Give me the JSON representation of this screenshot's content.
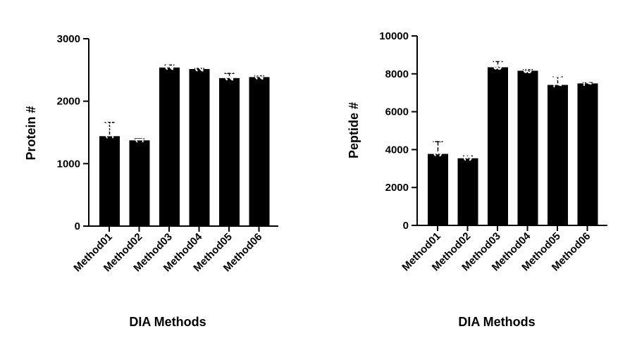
{
  "chart_data": [
    {
      "type": "bar",
      "categories": [
        "Method01",
        "Method02",
        "Method03",
        "Method04",
        "Method05",
        "Method06"
      ],
      "values": [
        1440,
        1373,
        2539,
        2515,
        2370,
        2386
      ],
      "error_upper": [
        220,
        25,
        40,
        10,
        75,
        20
      ],
      "data_labels": [
        "1440",
        "1373",
        "2539",
        "2515",
        "2370",
        "2386"
      ],
      "title": "",
      "xlabel": "DIA Methods",
      "ylabel": "Protein #",
      "ylim": [
        0,
        3000
      ],
      "yticks": [
        0,
        1000,
        2000,
        3000
      ],
      "ytick_labels": [
        "0",
        "1000",
        "2000",
        "3000"
      ],
      "bar_color": "#000000",
      "grid": false
    },
    {
      "type": "bar",
      "categories": [
        "Method01",
        "Method02",
        "Method03",
        "Method04",
        "Method05",
        "Method06"
      ],
      "values": [
        3773,
        3543,
        8346,
        8162,
        7414,
        7493
      ],
      "error_upper": [
        650,
        120,
        300,
        60,
        430,
        40
      ],
      "data_labels": [
        "3773",
        "3543",
        "8346",
        "8162",
        "7414",
        "7493"
      ],
      "title": "",
      "xlabel": "DIA Methods",
      "ylabel": "Peptide #",
      "ylim": [
        0,
        10000
      ],
      "yticks": [
        0,
        2000,
        4000,
        6000,
        8000,
        10000
      ],
      "ytick_labels": [
        "0",
        "2000",
        "4000",
        "6000",
        "8000",
        "10000"
      ],
      "bar_color": "#000000",
      "grid": false
    }
  ]
}
